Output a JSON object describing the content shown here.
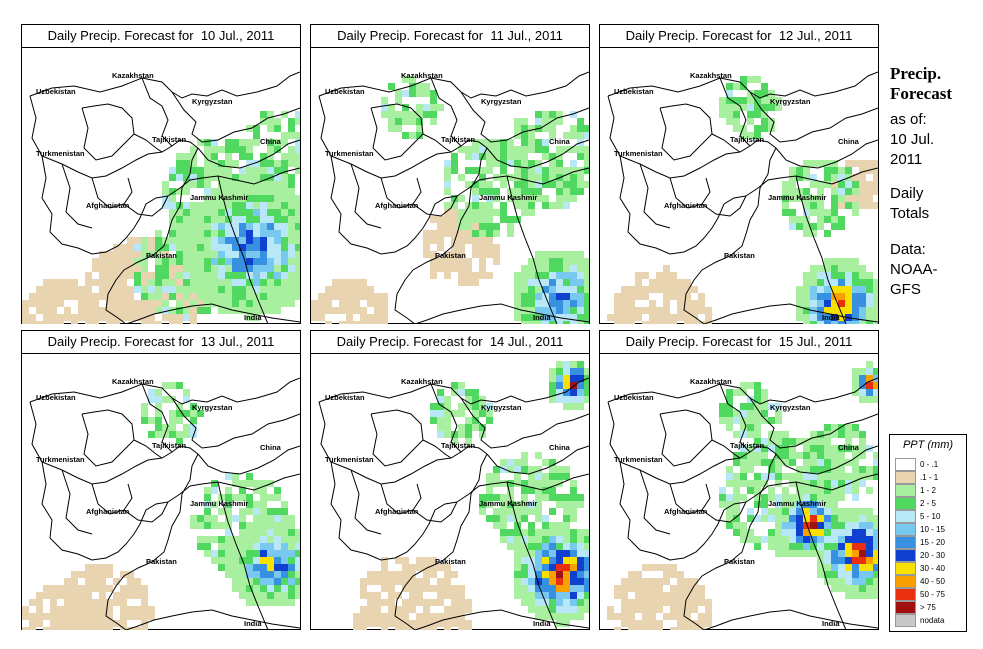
{
  "panels": [
    {
      "title": "Daily Precip. Forecast for  10 Jul., 2011",
      "day": 0
    },
    {
      "title": "Daily Precip. Forecast for  11 Jul., 2011",
      "day": 1
    },
    {
      "title": "Daily Precip. Forecast for  12 Jul., 2011",
      "day": 2
    },
    {
      "title": "Daily Precip. Forecast for  13 Jul., 2011",
      "day": 3
    },
    {
      "title": "Daily Precip. Forecast for  14 Jul., 2011",
      "day": 4
    },
    {
      "title": "Daily Precip. Forecast for  15 Jul., 2011",
      "day": 5
    }
  ],
  "map_labels": {
    "uzbekistan": "Uzbekistan",
    "kazakhstan": "Kazakhstan",
    "kyrgyzstan": "Kyrgyzstan",
    "tajikistan": "Tajikistan",
    "china": "China",
    "turkmenistan": "Turkmenistan",
    "afghanistan": "Afghanistan",
    "jammu_kashmir": "Jammu Kashmir",
    "pakistan": "Pakistan",
    "india": "India"
  },
  "sidebar": {
    "title_line1": "Precip.",
    "title_line2": "Forecast",
    "asof_line1": "as of:",
    "asof_line2": "10 Jul.",
    "asof_line3": "2011",
    "totals_line1": "Daily",
    "totals_line2": "Totals",
    "data_line1": "Data:",
    "data_line2": "NOAA-",
    "data_line3": "GFS"
  },
  "legend": {
    "title": "PPT (mm)",
    "items": [
      {
        "label": "0 - .1",
        "color": "#ffffff"
      },
      {
        "label": ".1 - 1",
        "color": "#e8d4b0"
      },
      {
        "label": "1 - 2",
        "color": "#a8f0a0"
      },
      {
        "label": "2 - 5",
        "color": "#50d860"
      },
      {
        "label": "5 - 10",
        "color": "#b8e8f8"
      },
      {
        "label": "10 - 15",
        "color": "#78c8f0"
      },
      {
        "label": "15 - 20",
        "color": "#3890e0"
      },
      {
        "label": "20 - 30",
        "color": "#1040d0"
      },
      {
        "label": "30 - 40",
        "color": "#f8e000"
      },
      {
        "label": "40 - 50",
        "color": "#f8a000"
      },
      {
        "label": "50 - 75",
        "color": "#e83010"
      },
      {
        "label": "> 75",
        "color": "#a01010"
      },
      {
        "label": "nodata",
        "color": "#c8c8c8"
      }
    ]
  }
}
